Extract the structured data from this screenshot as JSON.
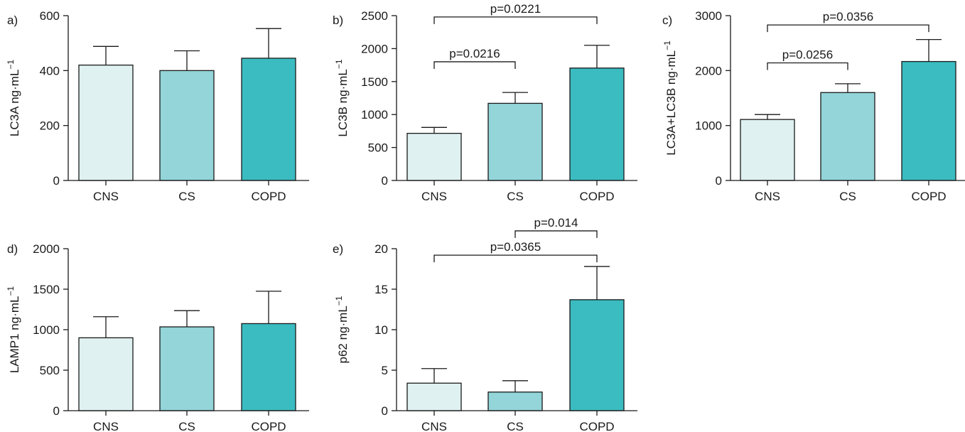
{
  "colors": {
    "CNS": "#dff1f0",
    "CS": "#93d5d9",
    "COPD": "#3bbcc1",
    "stroke": "#1a1a1a"
  },
  "chart_data": [
    {
      "type": "bar",
      "panel": "a)",
      "categories": [
        "CNS",
        "CS",
        "COPD"
      ],
      "values": [
        420,
        400,
        445
      ],
      "errors": [
        68,
        72,
        108
      ],
      "ylabel_prefix": "LC3A ng·mL",
      "ylabel_sup": "−1",
      "ylim": [
        0,
        600
      ],
      "yticks": [
        0,
        200,
        400,
        600
      ],
      "comparisons": []
    },
    {
      "type": "bar",
      "panel": "b)",
      "categories": [
        "CNS",
        "CS",
        "COPD"
      ],
      "values": [
        715,
        1170,
        1705
      ],
      "errors": [
        90,
        165,
        345
      ],
      "ylabel_prefix": "LC3B ng·mL",
      "ylabel_sup": "−1",
      "ylim": [
        0,
        2500
      ],
      "yticks": [
        0,
        500,
        1000,
        1500,
        2000,
        2500
      ],
      "comparisons": [
        {
          "from": 0,
          "to": 2,
          "label": "p=0.0221",
          "level": 2480
        },
        {
          "from": 0,
          "to": 1,
          "label": "p=0.0216",
          "level": 1800
        }
      ]
    },
    {
      "type": "bar",
      "panel": "c)",
      "categories": [
        "CNS",
        "CS",
        "COPD"
      ],
      "values": [
        1110,
        1600,
        2165
      ],
      "errors": [
        90,
        160,
        400
      ],
      "ylabel_prefix": "LC3A+LC3B ng·mL",
      "ylabel_sup": "−1",
      "ylim": [
        0,
        3000
      ],
      "yticks": [
        0,
        1000,
        2000,
        3000
      ],
      "comparisons": [
        {
          "from": 0,
          "to": 2,
          "label": "p=0.0356",
          "level": 2830
        },
        {
          "from": 0,
          "to": 1,
          "label": "p=0.0256",
          "level": 2140
        }
      ]
    },
    {
      "type": "bar",
      "panel": "d)",
      "categories": [
        "CNS",
        "CS",
        "COPD"
      ],
      "values": [
        900,
        1035,
        1075
      ],
      "errors": [
        260,
        200,
        400
      ],
      "ylabel_prefix": "LAMP1 ng·mL",
      "ylabel_sup": "−1",
      "ylim": [
        0,
        2000
      ],
      "yticks": [
        0,
        500,
        1000,
        1500,
        2000
      ],
      "comparisons": []
    },
    {
      "type": "bar",
      "panel": "e)",
      "categories": [
        "CNS",
        "CS",
        "COPD"
      ],
      "values": [
        3.4,
        2.3,
        13.7
      ],
      "errors": [
        1.8,
        1.4,
        4.1
      ],
      "ylabel_prefix": "p62 ng·mL",
      "ylabel_sup": "−1",
      "ylim": [
        0,
        20
      ],
      "yticks": [
        0,
        5,
        10,
        15,
        20
      ],
      "comparisons": [
        {
          "from": 0,
          "to": 2,
          "label": "p=0.0365",
          "level": 19.2
        },
        {
          "from": 1,
          "to": 2,
          "label": "p=0.014",
          "level": 22.2
        }
      ]
    }
  ]
}
